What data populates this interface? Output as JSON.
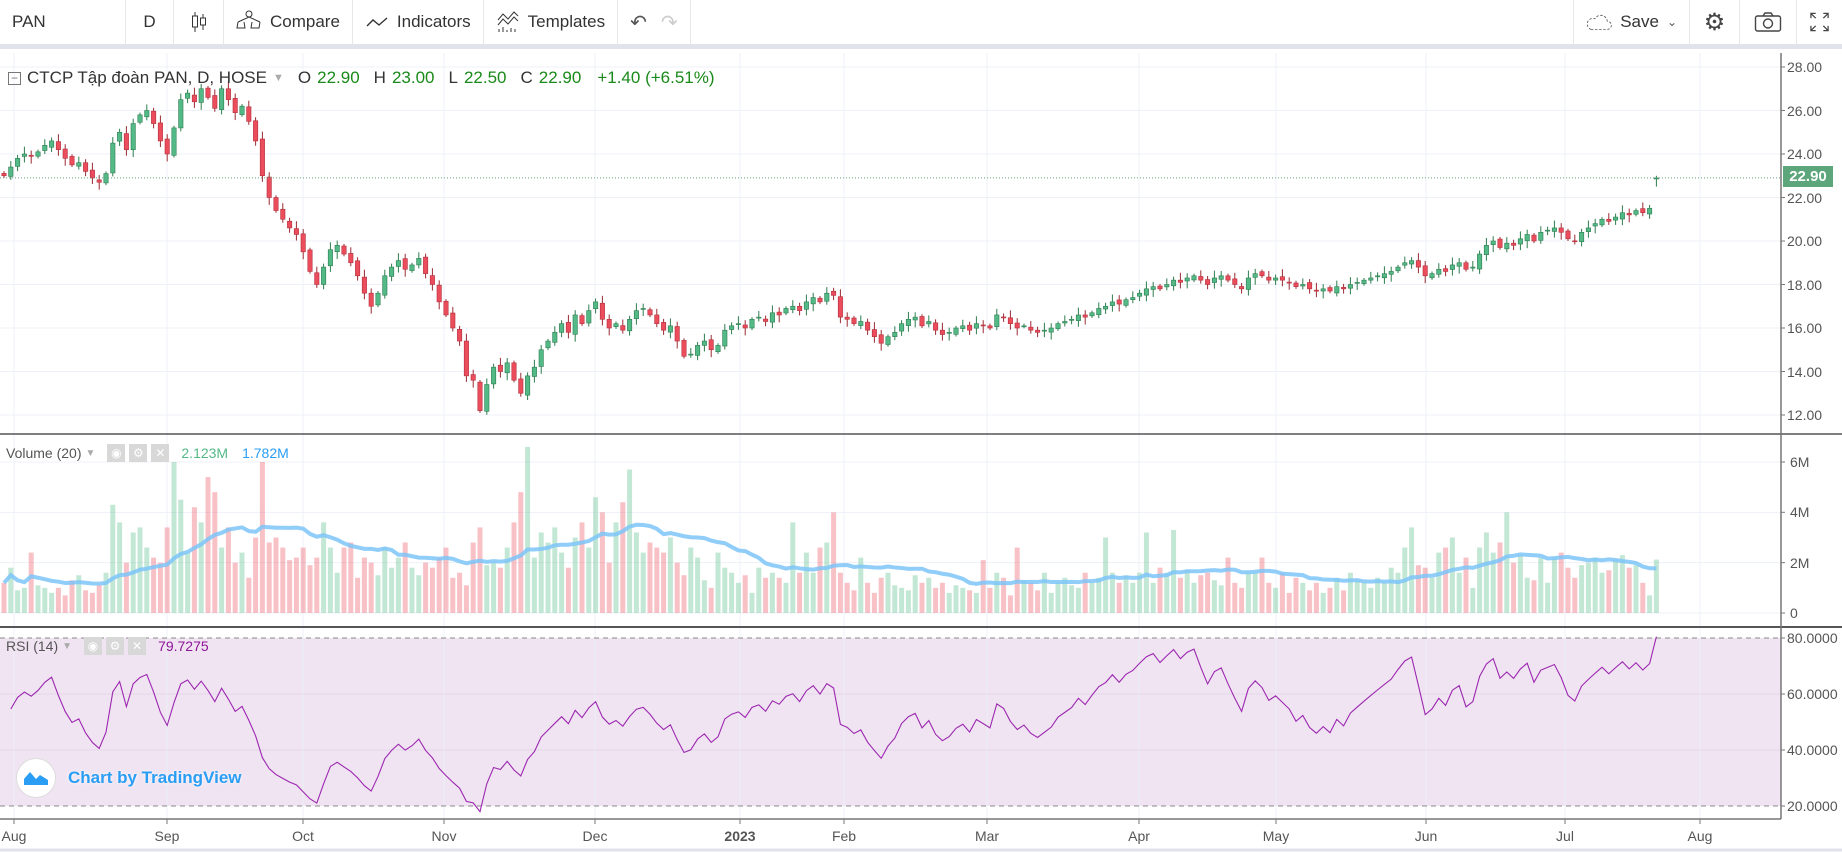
{
  "toolbar": {
    "symbol": "PAN",
    "interval": "D",
    "compare": "Compare",
    "indicators": "Indicators",
    "templates": "Templates",
    "save": "Save"
  },
  "legend": {
    "title": "CTCP Tập đoàn PAN, D, HOSE",
    "o_label": "O",
    "o": "22.90",
    "h_label": "H",
    "h": "23.00",
    "l_label": "L",
    "l": "22.50",
    "c_label": "C",
    "c": "22.90",
    "change": "+1.40 (+6.51%)"
  },
  "volume_legend": {
    "title": "Volume (20)",
    "value": "2.123M",
    "ma": "1.782M"
  },
  "rsi_legend": {
    "title": "RSI (14)",
    "value": "79.7275"
  },
  "last_price_tag": "22.90",
  "branding": "Chart by TradingView",
  "colors": {
    "up": "#53b987",
    "down": "#eb4d5c",
    "ma": "#7cc4f8",
    "rsi": "#9c27b0",
    "rsi_bg": "#f0e4f2"
  },
  "price_axis": [
    "28.00",
    "26.00",
    "24.00",
    "22.00",
    "20.00",
    "18.00",
    "16.00",
    "14.00",
    "12.00"
  ],
  "volume_axis": [
    "6M",
    "4M",
    "2M",
    "0"
  ],
  "rsi_axis": [
    "80.0000",
    "60.0000",
    "40.0000",
    "20.0000"
  ],
  "time_axis": [
    "Aug",
    "Sep",
    "Oct",
    "Nov",
    "Dec",
    "2023",
    "Feb",
    "Mar",
    "Apr",
    "May",
    "Jun",
    "Jul",
    "Aug"
  ],
  "chart_data": {
    "type": "candlestick",
    "price_range": [
      11,
      28.8
    ],
    "last_bar": {
      "open": 22.9,
      "high": 23.0,
      "low": 22.5,
      "close": 22.9
    },
    "closes": [
      23.0,
      23.4,
      23.8,
      24.0,
      23.9,
      24.1,
      24.4,
      24.6,
      24.2,
      23.8,
      23.5,
      23.6,
      23.2,
      22.9,
      22.7,
      23.1,
      24.5,
      25.0,
      24.2,
      25.4,
      25.8,
      26.0,
      25.4,
      24.6,
      24.0,
      25.2,
      26.5,
      26.8,
      26.4,
      27.0,
      26.6,
      26.1,
      27.0,
      26.5,
      25.9,
      26.2,
      25.5,
      24.6,
      23.0,
      22.0,
      21.4,
      21.0,
      20.6,
      20.3,
      19.5,
      18.6,
      18.0,
      18.8,
      19.6,
      19.8,
      19.4,
      19.0,
      18.4,
      17.6,
      17.0,
      17.6,
      18.4,
      18.8,
      19.1,
      18.7,
      18.9,
      19.2,
      18.5,
      18.0,
      17.2,
      16.6,
      16.0,
      15.4,
      13.8,
      13.6,
      12.2,
      13.4,
      14.2,
      14.0,
      14.4,
      13.6,
      13.0,
      13.8,
      14.2,
      15.0,
      15.4,
      15.8,
      16.2,
      15.8,
      16.6,
      16.2,
      16.8,
      17.2,
      16.4,
      16.0,
      16.2,
      15.9,
      16.4,
      16.8,
      16.9,
      16.6,
      16.2,
      15.9,
      16.1,
      15.4,
      14.7,
      14.8,
      15.2,
      15.4,
      15.0,
      15.2,
      15.9,
      16.1,
      16.2,
      16.0,
      16.4,
      16.5,
      16.3,
      16.7,
      16.6,
      16.9,
      17.0,
      16.8,
      17.2,
      17.4,
      17.2,
      17.6,
      17.5,
      16.5,
      16.4,
      16.2,
      16.3,
      15.9,
      15.6,
      15.3,
      15.6,
      15.8,
      16.2,
      16.4,
      16.5,
      16.1,
      16.3,
      15.9,
      15.7,
      15.8,
      16.0,
      16.1,
      15.9,
      16.2,
      16.1,
      16.0,
      16.6,
      16.5,
      16.2,
      16.0,
      16.1,
      15.9,
      15.8,
      15.9,
      16.0,
      16.2,
      16.3,
      16.4,
      16.6,
      16.5,
      16.7,
      16.9,
      17.0,
      17.2,
      17.1,
      17.3,
      17.4,
      17.6,
      17.8,
      17.9,
      17.8,
      18.0,
      18.2,
      18.1,
      18.3,
      18.4,
      18.2,
      18.0,
      18.3,
      18.4,
      18.2,
      18.0,
      17.8,
      18.3,
      18.5,
      18.4,
      18.2,
      18.3,
      18.2,
      18.1,
      17.9,
      18.0,
      17.8,
      17.7,
      17.8,
      17.7,
      17.9,
      17.8,
      18.0,
      18.1,
      18.2,
      18.3,
      18.4,
      18.5,
      18.6,
      18.8,
      19.0,
      19.1,
      18.8,
      18.4,
      18.5,
      18.7,
      18.6,
      18.9,
      19.0,
      18.7,
      18.8,
      19.4,
      19.8,
      20.0,
      19.7,
      19.9,
      19.8,
      20.1,
      20.3,
      20.0,
      20.4,
      20.5,
      20.6,
      20.4,
      20.1,
      20.0,
      20.4,
      20.6,
      20.8,
      21.0,
      20.9,
      21.1,
      21.3,
      21.2,
      21.4,
      21.3,
      21.5,
      22.9
    ],
    "volumes_m": [
      1.2,
      1.8,
      0.9,
      1.0,
      2.4,
      1.1,
      1.0,
      0.8,
      1.0,
      0.7,
      1.3,
      1.5,
      0.9,
      0.8,
      1.1,
      1.6,
      4.3,
      3.6,
      2.0,
      3.2,
      3.4,
      2.6,
      2.2,
      2.0,
      3.4,
      6.0,
      4.5,
      2.4,
      4.2,
      3.6,
      5.4,
      4.8,
      2.6,
      3.4,
      2.0,
      2.4,
      1.4,
      3.0,
      6.0,
      2.8,
      3.0,
      2.6,
      2.1,
      2.2,
      2.6,
      1.9,
      2.2,
      3.6,
      2.6,
      1.6,
      2.6,
      2.8,
      1.4,
      2.2,
      2.0,
      1.5,
      2.6,
      1.8,
      2.2,
      2.8,
      1.8,
      1.5,
      2.0,
      1.8,
      2.2,
      2.6,
      1.4,
      1.6,
      1.1,
      2.8,
      3.4,
      1.9,
      2.0,
      1.8,
      2.6,
      3.6,
      4.8,
      6.6,
      2.2,
      3.2,
      2.8,
      3.4,
      2.4,
      1.8,
      3.0,
      3.6,
      2.6,
      4.6,
      4.0,
      2.0,
      3.6,
      4.4,
      5.7,
      3.2,
      2.4,
      2.8,
      2.6,
      2.4,
      3.0,
      2.0,
      1.5,
      2.6,
      2.2,
      1.3,
      1.0,
      2.4,
      1.8,
      1.6,
      1.2,
      1.5,
      0.8,
      1.8,
      1.4,
      1.6,
      1.4,
      1.2,
      3.6,
      1.6,
      2.4,
      1.6,
      2.6,
      2.8,
      4.0,
      1.6,
      1.2,
      0.9,
      2.2,
      1.2,
      0.8,
      1.4,
      1.6,
      1.1,
      1.0,
      0.9,
      1.5,
      1.2,
      1.4,
      1.0,
      1.2,
      0.8,
      1.1,
      1.0,
      0.9,
      0.8,
      2.1,
      1.0,
      1.6,
      1.4,
      0.7,
      2.6,
      1.3,
      1.2,
      0.9,
      1.6,
      0.8,
      1.2,
      1.4,
      1.1,
      1.0,
      1.6,
      1.2,
      1.4,
      3.0,
      1.6,
      1.2,
      1.5,
      1.2,
      1.6,
      3.2,
      1.2,
      1.8,
      1.6,
      3.3,
      1.4,
      1.7,
      1.2,
      1.5,
      1.6,
      1.3,
      1.1,
      2.2,
      1.2,
      1.0,
      1.6,
      1.6,
      2.2,
      1.2,
      1.0,
      1.6,
      0.8,
      1.4,
      1.2,
      0.9,
      1.2,
      0.8,
      1.0,
      1.4,
      0.9,
      1.6,
      1.3,
      1.2,
      1.0,
      1.4,
      1.2,
      1.8,
      1.6,
      2.6,
      3.4,
      1.9,
      1.8,
      1.4,
      2.4,
      2.6,
      3.0,
      1.6,
      2.2,
      1.0,
      2.6,
      3.2,
      2.4,
      2.8,
      4.0,
      2.0,
      2.3,
      1.4,
      1.3,
      2.2,
      1.2,
      2.2,
      2.4,
      1.8,
      1.4,
      1.9,
      2.0,
      2.2,
      1.6,
      1.7,
      2.1,
      2.3,
      1.8,
      1.9,
      1.2,
      0.7,
      2.123
    ],
    "volume_ma_period": 20,
    "rsi_period": 14,
    "rsi_bands": [
      20,
      80
    ]
  }
}
